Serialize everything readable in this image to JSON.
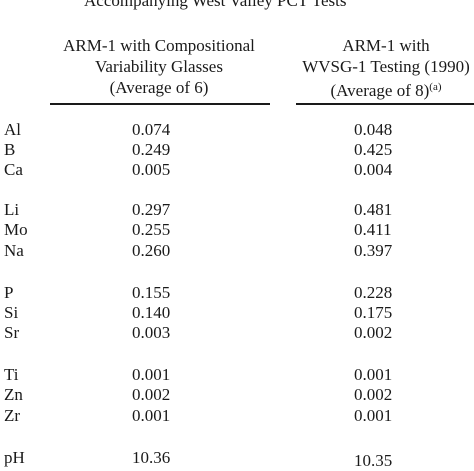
{
  "caption": "Accompanying West Valley PCT Tests",
  "columns": [
    {
      "lines": [
        "ARM-1 with Compositional",
        "Variability Glasses",
        "(Average of 6)"
      ],
      "footnote": ""
    },
    {
      "lines": [
        "ARM-1 with",
        "WVSG-1 Testing (1990)",
        "(Average of 8)"
      ],
      "footnote": "(a)"
    }
  ],
  "rows": [
    {
      "element": "Al",
      "v1": "0.074",
      "v2": "0.048"
    },
    {
      "element": "B",
      "v1": "0.249",
      "v2": "0.425"
    },
    {
      "element": "Ca",
      "v1": "0.005",
      "v2": "0.004"
    },
    {
      "element": "Li",
      "v1": "0.297",
      "v2": "0.481"
    },
    {
      "element": "Mo",
      "v1": "0.255",
      "v2": "0.411"
    },
    {
      "element": "Na",
      "v1": "0.260",
      "v2": "0.397"
    },
    {
      "element": "P",
      "v1": "0.155",
      "v2": "0.228"
    },
    {
      "element": "Si",
      "v1": "0.140",
      "v2": "0.175"
    },
    {
      "element": "Sr",
      "v1": "0.003",
      "v2": "0.002"
    },
    {
      "element": "Ti",
      "v1": "0.001",
      "v2": "0.001"
    },
    {
      "element": "Zn",
      "v1": "0.002",
      "v2": "0.002"
    },
    {
      "element": "Zr",
      "v1": "0.001",
      "v2": "0.001"
    },
    {
      "element": "pH",
      "v1": "10.36",
      "v2": "10.35"
    }
  ]
}
